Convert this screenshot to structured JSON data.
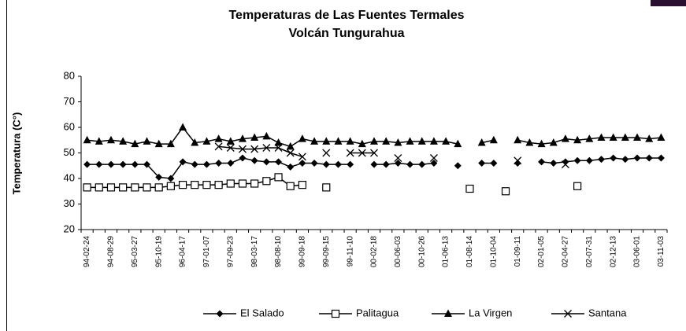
{
  "chart_data": {
    "type": "line",
    "title": "Temperaturas de Las Fuentes Termales",
    "subtitle": "Volcán Tungurahua",
    "y_label": "Temperatura (C°)",
    "categories": [
      "94-02-24",
      null,
      "94-08-29",
      null,
      "95-03-27",
      null,
      "95-10-19",
      null,
      "96-04-17",
      null,
      "97-01-07",
      null,
      "97-09-23",
      null,
      "98-03-17",
      null,
      "98-08-10",
      null,
      "99-09-18",
      null,
      "99-09-15",
      null,
      "99-11-10",
      null,
      "00-02-18",
      null,
      "00-06-03",
      null,
      "00-10-26",
      null,
      "01-06-13",
      null,
      "01-08-14",
      null,
      "01-10-04",
      null,
      "01-09-11",
      null,
      "02-01-05",
      null,
      "02-04-27",
      null,
      "02-07-31",
      null,
      "02-12-13",
      null,
      "03-06-01",
      null,
      "03-11-03"
    ],
    "series": [
      {
        "name": "El Salado",
        "color": "#000000",
        "marker": "diamond",
        "values": [
          45.5,
          45.5,
          45.5,
          45.5,
          45.5,
          45.5,
          40.5,
          40,
          46.5,
          45.5,
          45.5,
          46,
          46,
          48,
          47,
          46.5,
          46.5,
          44.5,
          46,
          46,
          45.5,
          45.5,
          45.5,
          null,
          45.5,
          45.5,
          46,
          45.5,
          45.5,
          46,
          null,
          45,
          null,
          46,
          46,
          null,
          46,
          null,
          46.5,
          46,
          46.5,
          47,
          47,
          47.5,
          48,
          47.5,
          48,
          48,
          48
        ]
      },
      {
        "name": "Palitagua",
        "color": "#000000",
        "marker": "square",
        "values": [
          36.5,
          36.5,
          36.5,
          36.5,
          36.5,
          36.5,
          36.5,
          37,
          37.5,
          37.5,
          37.5,
          37.5,
          38,
          38,
          38,
          39,
          40.5,
          37,
          37.5,
          null,
          36.5,
          null,
          null,
          null,
          null,
          null,
          null,
          null,
          null,
          null,
          null,
          null,
          36,
          null,
          null,
          35,
          null,
          null,
          null,
          null,
          null,
          37,
          null,
          null,
          null,
          null,
          null,
          null,
          null
        ]
      },
      {
        "name": "La Virgen",
        "color": "#000000",
        "marker": "triangle",
        "values": [
          55,
          54.5,
          55,
          54.5,
          53.5,
          54.5,
          53.5,
          53.5,
          60,
          54,
          54.5,
          55.5,
          54.5,
          55.5,
          56,
          56.5,
          54,
          52.5,
          55.5,
          54.5,
          54.5,
          54.5,
          54.5,
          53.5,
          54.5,
          54.5,
          54,
          54.5,
          54.5,
          54.5,
          54.5,
          53.5,
          null,
          54,
          55,
          null,
          55,
          54,
          53.5,
          54,
          55.5,
          55,
          55.5,
          56,
          56,
          56,
          56,
          55.5,
          56
        ]
      },
      {
        "name": "Santana",
        "color": "#000000",
        "marker": "x",
        "values": [
          null,
          null,
          null,
          null,
          null,
          null,
          null,
          null,
          null,
          null,
          null,
          52.5,
          52,
          51.5,
          51.5,
          52,
          52,
          50,
          48.5,
          null,
          50,
          null,
          50,
          50,
          50,
          null,
          48,
          null,
          null,
          48,
          null,
          null,
          null,
          null,
          null,
          null,
          47,
          null,
          null,
          null,
          45.5,
          null,
          null,
          null,
          null,
          null,
          null,
          null,
          null
        ]
      }
    ],
    "ylim": [
      20,
      80
    ],
    "yticks": [
      20,
      30,
      40,
      50,
      60,
      70,
      80
    ],
    "grid": false
  }
}
